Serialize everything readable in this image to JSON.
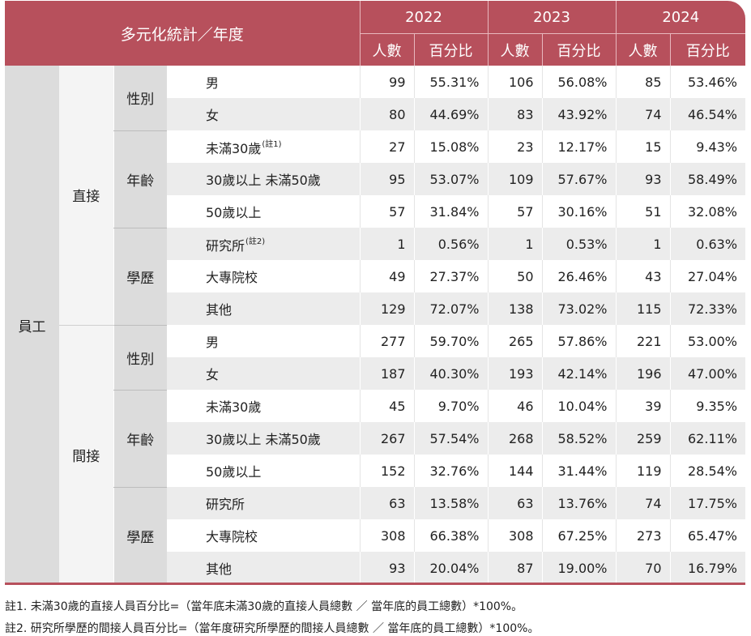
{
  "header": {
    "title": "多元化統計／年度",
    "years": [
      "2022",
      "2023",
      "2024"
    ],
    "sub": {
      "count": "人數",
      "pct": "百分比"
    }
  },
  "categories": {
    "top": "員工",
    "direct": "直接",
    "indirect": "間接",
    "gender": "性別",
    "age": "年齡",
    "edu": "學歷"
  },
  "rows": [
    {
      "label": "男",
      "note": "",
      "v": [
        "99",
        "55.31%",
        "106",
        "56.08%",
        "85",
        "53.46%"
      ]
    },
    {
      "label": "女",
      "note": "",
      "v": [
        "80",
        "44.69%",
        "83",
        "43.92%",
        "74",
        "46.54%"
      ]
    },
    {
      "label": "未滿30歲",
      "note": "(註1)",
      "v": [
        "27",
        "15.08%",
        "23",
        "12.17%",
        "15",
        "9.43%"
      ]
    },
    {
      "label": "30歲以上 未滿50歲",
      "note": "",
      "v": [
        "95",
        "53.07%",
        "109",
        "57.67%",
        "93",
        "58.49%"
      ]
    },
    {
      "label": "50歲以上",
      "note": "",
      "v": [
        "57",
        "31.84%",
        "57",
        "30.16%",
        "51",
        "32.08%"
      ]
    },
    {
      "label": "研究所",
      "note": "(註2)",
      "v": [
        "1",
        "0.56%",
        "1",
        "0.53%",
        "1",
        "0.63%"
      ]
    },
    {
      "label": "大專院校",
      "note": "",
      "v": [
        "49",
        "27.37%",
        "50",
        "26.46%",
        "43",
        "27.04%"
      ]
    },
    {
      "label": "其他",
      "note": "",
      "v": [
        "129",
        "72.07%",
        "138",
        "73.02%",
        "115",
        "72.33%"
      ]
    },
    {
      "label": "男",
      "note": "",
      "v": [
        "277",
        "59.70%",
        "265",
        "57.86%",
        "221",
        "53.00%"
      ]
    },
    {
      "label": "女",
      "note": "",
      "v": [
        "187",
        "40.30%",
        "193",
        "42.14%",
        "196",
        "47.00%"
      ]
    },
    {
      "label": "未滿30歲",
      "note": "",
      "v": [
        "45",
        "9.70%",
        "46",
        "10.04%",
        "39",
        "9.35%"
      ]
    },
    {
      "label": "30歲以上 未滿50歲",
      "note": "",
      "v": [
        "267",
        "57.54%",
        "268",
        "58.52%",
        "259",
        "62.11%"
      ]
    },
    {
      "label": "50歲以上",
      "note": "",
      "v": [
        "152",
        "32.76%",
        "144",
        "31.44%",
        "119",
        "28.54%"
      ]
    },
    {
      "label": "研究所",
      "note": "",
      "v": [
        "63",
        "13.58%",
        "63",
        "13.76%",
        "74",
        "17.75%"
      ]
    },
    {
      "label": "大專院校",
      "note": "",
      "v": [
        "308",
        "66.38%",
        "308",
        "67.25%",
        "273",
        "65.47%"
      ]
    },
    {
      "label": "其他",
      "note": "",
      "v": [
        "93",
        "20.04%",
        "87",
        "19.00%",
        "70",
        "16.79%"
      ]
    }
  ],
  "notes": [
    "註1. 未滿30歲的直接人員百分比=（當年底未滿30歲的直接人員總數 ／ 當年底的員工總數）*100%。",
    "註2. 研究所學歷的間接人員百分比=（當年度研究所學歷的間接人員總數 ／ 當年底的員工總數）*100%。"
  ],
  "colors": {
    "header": "#b7505c",
    "stripe": "#ececec",
    "category": "#dcdcdc"
  }
}
